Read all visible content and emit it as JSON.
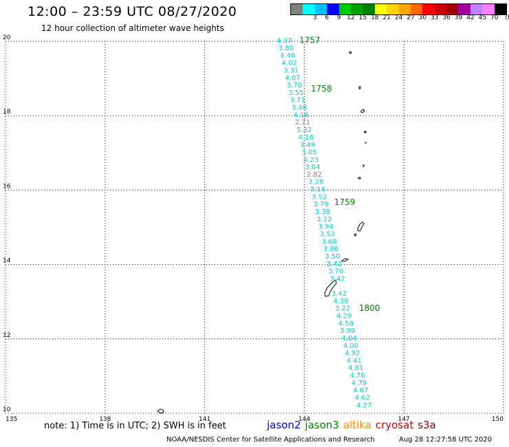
{
  "title": "12:00 – 23:59 UTC 08/27/2020",
  "subtitle": "12 hour collection of altimeter wave heights",
  "colorbar": {
    "unit": "(ft)",
    "colors": [
      "#808080",
      "#00ffff",
      "#00bfff",
      "#0000ff",
      "#00cc00",
      "#00a000",
      "#008000",
      "#ffff00",
      "#ffd700",
      "#ffa500",
      "#ff6600",
      "#ff0000",
      "#cc0000",
      "#a00000",
      "#a000a0",
      "#c080ff",
      "#ff80ff",
      "#000000"
    ],
    "labels": [
      "3",
      "6",
      "9",
      "12",
      "15",
      "18",
      "21",
      "24",
      "27",
      "30",
      "33",
      "36",
      "39",
      "42",
      "45",
      "70"
    ]
  },
  "axes": {
    "lon_ticks": [
      "135",
      "138",
      "141",
      "144",
      "147",
      "150"
    ],
    "lat_ticks": [
      "20",
      "18",
      "16",
      "14",
      "12",
      "10"
    ],
    "lon_range": [
      135,
      150
    ],
    "lat_range": [
      10,
      20
    ]
  },
  "track": [
    {
      "v": "4.37",
      "lon": 143.4,
      "lat": 19.95,
      "c": "#00cccc"
    },
    {
      "v": "3.80",
      "lon": 143.45,
      "lat": 19.76,
      "c": "#00cccc"
    },
    {
      "v": "4.46",
      "lon": 143.5,
      "lat": 19.56,
      "c": "#00cccc"
    },
    {
      "v": "4.02",
      "lon": 143.55,
      "lat": 19.36,
      "c": "#00cccc"
    },
    {
      "v": "3.31",
      "lon": 143.6,
      "lat": 19.16,
      "c": "#00cccc"
    },
    {
      "v": "4.07",
      "lon": 143.65,
      "lat": 18.96,
      "c": "#00cccc"
    },
    {
      "v": "3.70",
      "lon": 143.7,
      "lat": 18.76,
      "c": "#00cccc"
    },
    {
      "v": "3.55",
      "lon": 143.75,
      "lat": 18.56,
      "c": "#00cccc"
    },
    {
      "v": "3.71",
      "lon": 143.8,
      "lat": 18.36,
      "c": "#00cccc"
    },
    {
      "v": "3.48",
      "lon": 143.85,
      "lat": 18.16,
      "c": "#00cccc"
    },
    {
      "v": "4.18",
      "lon": 143.9,
      "lat": 17.96,
      "c": "#00cccc"
    },
    {
      "v": "2.71",
      "lon": 143.95,
      "lat": 17.76,
      "c": "#808080"
    },
    {
      "v": "5.32",
      "lon": 144.0,
      "lat": 17.56,
      "c": "#00cccc"
    },
    {
      "v": "4.16",
      "lon": 144.05,
      "lat": 17.36,
      "c": "#00cccc"
    },
    {
      "v": "3.49",
      "lon": 144.1,
      "lat": 17.16,
      "c": "#00cccc"
    },
    {
      "v": "3.05",
      "lon": 144.15,
      "lat": 16.96,
      "c": "#00cccc"
    },
    {
      "v": "4.23",
      "lon": 144.2,
      "lat": 16.76,
      "c": "#00cccc"
    },
    {
      "v": "3.04",
      "lon": 144.25,
      "lat": 16.56,
      "c": "#00cccc"
    },
    {
      "v": "2.82",
      "lon": 144.3,
      "lat": 16.36,
      "c": "#808080"
    },
    {
      "v": "3.28",
      "lon": 144.35,
      "lat": 16.16,
      "c": "#00cccc"
    },
    {
      "v": "3.14",
      "lon": 144.4,
      "lat": 15.96,
      "c": "#00cccc"
    },
    {
      "v": "3.52",
      "lon": 144.45,
      "lat": 15.76,
      "c": "#00cccc"
    },
    {
      "v": "3.79",
      "lon": 144.5,
      "lat": 15.56,
      "c": "#00cccc"
    },
    {
      "v": "3.38",
      "lon": 144.55,
      "lat": 15.36,
      "c": "#00cccc"
    },
    {
      "v": "3.12",
      "lon": 144.6,
      "lat": 15.16,
      "c": "#00cccc"
    },
    {
      "v": "3.94",
      "lon": 144.65,
      "lat": 14.96,
      "c": "#00cccc"
    },
    {
      "v": "3.52",
      "lon": 144.7,
      "lat": 14.76,
      "c": "#00cccc"
    },
    {
      "v": "3.68",
      "lon": 144.75,
      "lat": 14.56,
      "c": "#00cccc"
    },
    {
      "v": "3.86",
      "lon": 144.8,
      "lat": 14.36,
      "c": "#00cccc"
    },
    {
      "v": "3.50",
      "lon": 144.85,
      "lat": 14.16,
      "c": "#00cccc"
    },
    {
      "v": "3.42",
      "lon": 144.9,
      "lat": 13.96,
      "c": "#00cccc"
    },
    {
      "v": "3.70",
      "lon": 144.95,
      "lat": 13.76,
      "c": "#00cccc"
    },
    {
      "v": "3.42",
      "lon": 145.0,
      "lat": 13.56,
      "c": "#00cccc"
    },
    {
      "v": "3.42",
      "lon": 145.05,
      "lat": 13.16,
      "c": "#00cccc"
    },
    {
      "v": "4.39",
      "lon": 145.1,
      "lat": 12.96,
      "c": "#00cccc"
    },
    {
      "v": "3.22",
      "lon": 145.15,
      "lat": 12.76,
      "c": "#00cccc"
    },
    {
      "v": "4.29",
      "lon": 145.2,
      "lat": 12.56,
      "c": "#00cccc"
    },
    {
      "v": "4.58",
      "lon": 145.25,
      "lat": 12.36,
      "c": "#00cccc"
    },
    {
      "v": "3.99",
      "lon": 145.3,
      "lat": 12.16,
      "c": "#00cccc"
    },
    {
      "v": "4.04",
      "lon": 145.35,
      "lat": 11.96,
      "c": "#00cccc"
    },
    {
      "v": "4.00",
      "lon": 145.4,
      "lat": 11.76,
      "c": "#00cccc"
    },
    {
      "v": "4.92",
      "lon": 145.45,
      "lat": 11.56,
      "c": "#00cccc"
    },
    {
      "v": "4.41",
      "lon": 145.5,
      "lat": 11.36,
      "c": "#00cccc"
    },
    {
      "v": "4.81",
      "lon": 145.55,
      "lat": 11.16,
      "c": "#00cccc"
    },
    {
      "v": "4.76",
      "lon": 145.6,
      "lat": 10.96,
      "c": "#00cccc"
    },
    {
      "v": "4.79",
      "lon": 145.65,
      "lat": 10.76,
      "c": "#00cccc"
    },
    {
      "v": "4.67",
      "lon": 145.7,
      "lat": 10.56,
      "c": "#00cccc"
    },
    {
      "v": "4.62",
      "lon": 145.75,
      "lat": 10.36,
      "c": "#00cccc"
    },
    {
      "v": "4.27",
      "lon": 145.8,
      "lat": 10.16,
      "c": "#00cccc"
    }
  ],
  "time_labels": [
    {
      "t": "1757",
      "lon": 143.85,
      "lat": 19.95
    },
    {
      "t": "1758",
      "lon": 144.2,
      "lat": 18.65
    },
    {
      "t": "1759",
      "lon": 144.9,
      "lat": 15.6
    },
    {
      "t": "1800",
      "lon": 145.65,
      "lat": 12.75
    }
  ],
  "footer": {
    "note": "note:  1) Time is in UTC;  2) SWH is in feet",
    "satellites": [
      {
        "name": "jason2",
        "color": "#0000cc"
      },
      {
        "name": "jason3",
        "color": "#008000"
      },
      {
        "name": "altika",
        "color": "#ff8c00"
      },
      {
        "name": "cryosat",
        "color": "#cc0000"
      },
      {
        "name": "s3a",
        "color": "#800000"
      }
    ],
    "credit": "NOAA/NESDIS Center for Satellite Applications and Research",
    "timestamp": "Aug 28 12:27:58 UTC 2020"
  }
}
